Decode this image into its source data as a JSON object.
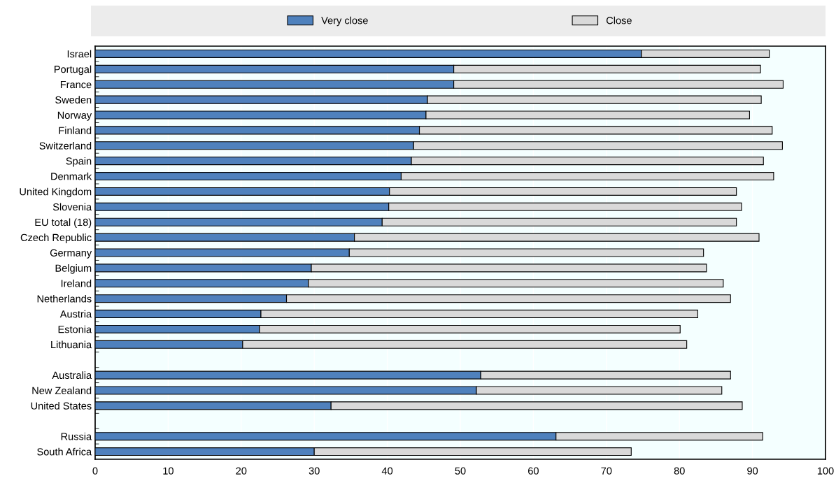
{
  "chart_data": {
    "type": "bar",
    "orientation": "horizontal",
    "stacked": true,
    "categories": [
      "Israel",
      "Portugal",
      "France",
      "Sweden",
      "Norway",
      "Finland",
      "Switzerland",
      "Spain",
      "Denmark",
      "United Kingdom",
      "Slovenia",
      "EU total (18)",
      "Czech Republic",
      "Germany",
      "Belgium",
      "Ireland",
      "Netherlands",
      "Austria",
      "Estonia",
      "Lithuania",
      null,
      "Australia",
      "New Zealand",
      "United States",
      null,
      "Russia",
      "South Africa"
    ],
    "series": [
      {
        "name": "Very close",
        "color": "#4f81bd",
        "values": [
          74.8,
          49.1,
          49.1,
          45.5,
          45.3,
          44.4,
          43.6,
          43.3,
          41.9,
          40.3,
          40.2,
          39.3,
          35.5,
          34.8,
          29.6,
          29.2,
          26.2,
          22.7,
          22.5,
          20.2,
          null,
          52.8,
          52.2,
          32.3,
          null,
          63.1,
          30.0
        ]
      },
      {
        "name": "Close",
        "color": "#d9d9d9",
        "values": [
          17.5,
          42.0,
          45.1,
          45.7,
          44.3,
          48.3,
          50.5,
          48.2,
          51.0,
          47.5,
          48.3,
          48.5,
          55.4,
          48.5,
          54.1,
          56.8,
          60.8,
          59.8,
          57.6,
          60.8,
          null,
          34.2,
          33.6,
          56.3,
          null,
          28.3,
          43.4
        ]
      }
    ],
    "xlim": [
      0,
      100
    ],
    "xticks": [
      0,
      10,
      20,
      30,
      40,
      50,
      60,
      70,
      80,
      90,
      100
    ],
    "grid": "x",
    "legend": "top"
  }
}
